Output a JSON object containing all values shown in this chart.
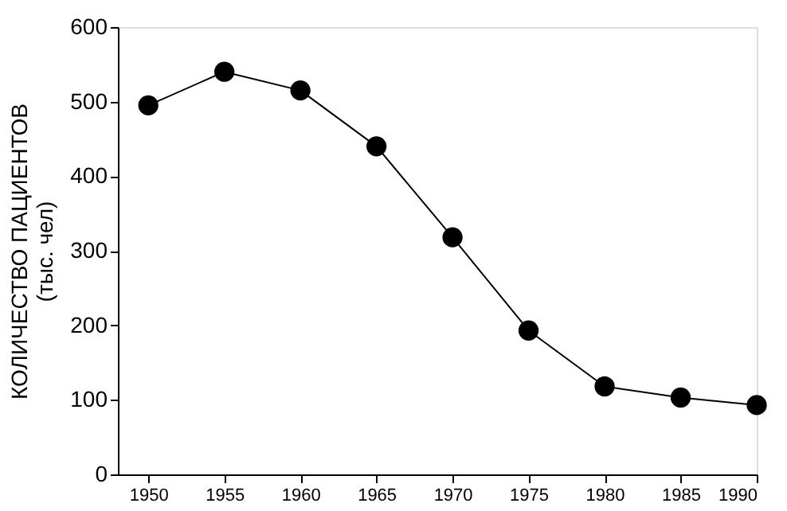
{
  "chart_data": {
    "type": "line",
    "ylabel": "КОЛИЧЕСТВО ПАЦИЕНТОВ\n(тыс. чел)",
    "x": [
      1950,
      1955,
      1960,
      1965,
      1970,
      1975,
      1980,
      1985,
      1990
    ],
    "series": [
      {
        "color": "#000000",
        "values": [
          495,
          540,
          515,
          440,
          318,
          193,
          118,
          103,
          93
        ]
      }
    ],
    "xlim": [
      1948,
      1990
    ],
    "xticks": [
      1950,
      1955,
      1960,
      1965,
      1970,
      1975,
      1980,
      1985,
      1990
    ],
    "ylim": [
      0,
      600
    ],
    "yticks": [
      0,
      100,
      200,
      300,
      400,
      500,
      600
    ],
    "marker": "circle",
    "line_style": "solid",
    "grid": false
  }
}
